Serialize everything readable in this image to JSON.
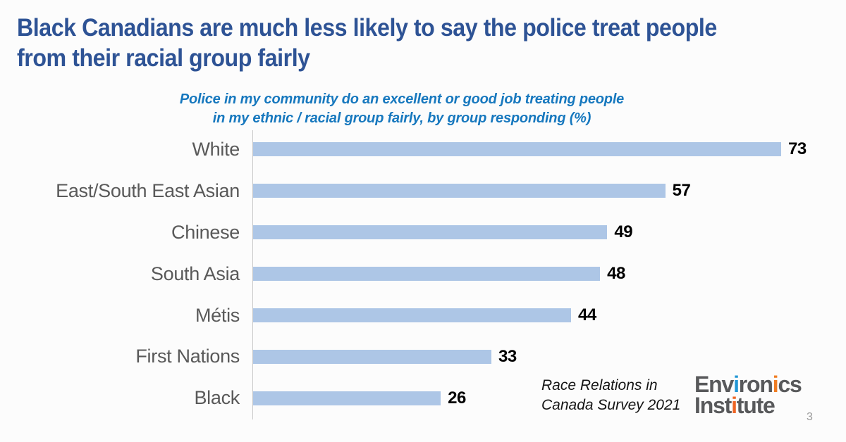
{
  "slide": {
    "title_lines": [
      "Black Canadians are much less likely to say the police treat people",
      "from their racial group fairly"
    ],
    "source_lines": [
      "Race Relations in",
      "Canada Survey 2021"
    ],
    "page_number": "3"
  },
  "chart_data": {
    "type": "bar",
    "orientation": "horizontal",
    "title_lines": [
      "Police in my community do an excellent or good job treating people",
      "in my ethnic / racial group fairly, by group responding (%)"
    ],
    "title": "Police in my community do an excellent or good job treating people in my ethnic / racial group fairly, by group responding (%)",
    "categories": [
      "White",
      "East/South East Asian",
      "Chinese",
      "South Asia",
      "Métis",
      "First Nations",
      "Black"
    ],
    "values": [
      73,
      57,
      49,
      48,
      44,
      33,
      26
    ],
    "xlim": [
      0,
      80
    ],
    "grid": false,
    "legend": false,
    "value_labels": true,
    "bar_color": "#adc6e6",
    "category_label_color": "#595959",
    "value_label_color": "#000000",
    "axis_line_color": "#c9c9c9"
  },
  "logo": {
    "lines": [
      {
        "segments": [
          {
            "text": "Env",
            "color": "#58595b"
          },
          {
            "text": "i",
            "color": "#2196d4"
          },
          {
            "text": "ron",
            "color": "#58595b"
          },
          {
            "text": "i",
            "color": "#f07d22"
          },
          {
            "text": "cs",
            "color": "#58595b"
          }
        ]
      },
      {
        "segments": [
          {
            "text": "Inst",
            "color": "#58595b"
          },
          {
            "text": "i",
            "color": "#ee6424"
          },
          {
            "text": "tute",
            "color": "#58595b"
          }
        ]
      }
    ]
  },
  "colors": {
    "title": "#2e5395",
    "subtitle": "#1778be",
    "background": "#fcfcfc",
    "source_text": "#141414",
    "page_number": "#9a9a9a"
  }
}
